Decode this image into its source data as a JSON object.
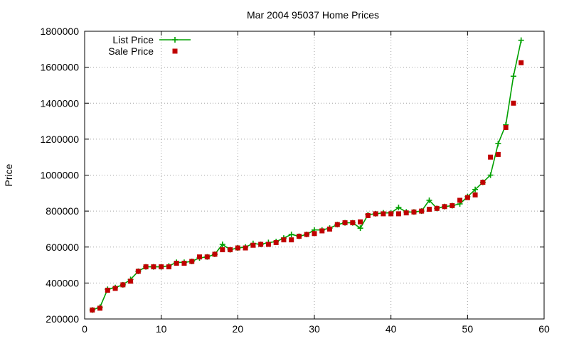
{
  "chart_data": {
    "type": "line",
    "title": "Mar 2004 95037 Home Prices",
    "xlabel": "",
    "ylabel": "Price",
    "xlim": [
      0,
      60
    ],
    "ylim": [
      200000,
      1800000
    ],
    "x_ticks": [
      0,
      10,
      20,
      30,
      40,
      50,
      60
    ],
    "y_ticks": [
      200000,
      400000,
      600000,
      800000,
      1000000,
      1200000,
      1400000,
      1600000,
      1800000
    ],
    "grid": true,
    "legend_position": "top-left",
    "x": [
      1,
      2,
      3,
      4,
      5,
      6,
      7,
      8,
      9,
      10,
      11,
      12,
      13,
      14,
      15,
      16,
      17,
      18,
      19,
      20,
      21,
      22,
      23,
      24,
      25,
      26,
      27,
      28,
      29,
      30,
      31,
      32,
      33,
      34,
      35,
      36,
      37,
      38,
      39,
      40,
      41,
      42,
      43,
      44,
      45,
      46,
      47,
      48,
      49,
      50,
      51,
      52,
      53,
      54,
      55,
      56,
      57
    ],
    "series": [
      {
        "name": "List Price",
        "style": "linespoints",
        "color": "#00a000",
        "values": [
          250000,
          265000,
          365000,
          375000,
          390000,
          420000,
          465000,
          490000,
          490000,
          490000,
          495000,
          515000,
          515000,
          520000,
          540000,
          545000,
          560000,
          615000,
          585000,
          595000,
          600000,
          620000,
          615000,
          625000,
          630000,
          650000,
          670000,
          660000,
          670000,
          695000,
          695000,
          705000,
          725000,
          735000,
          735000,
          705000,
          780000,
          785000,
          790000,
          790000,
          820000,
          795000,
          795000,
          800000,
          860000,
          815000,
          825000,
          830000,
          840000,
          880000,
          920000,
          960000,
          1000000,
          1175000,
          1280000,
          1550000,
          1750000
        ]
      },
      {
        "name": "Sale Price",
        "style": "points",
        "color": "#c00000",
        "values": [
          250000,
          260000,
          360000,
          370000,
          390000,
          410000,
          465000,
          490000,
          490000,
          490000,
          490000,
          510000,
          510000,
          520000,
          545000,
          545000,
          560000,
          585000,
          585000,
          595000,
          595000,
          610000,
          615000,
          615000,
          625000,
          640000,
          640000,
          660000,
          670000,
          675000,
          690000,
          700000,
          725000,
          735000,
          735000,
          740000,
          775000,
          785000,
          785000,
          785000,
          785000,
          790000,
          795000,
          800000,
          810000,
          815000,
          825000,
          830000,
          860000,
          875000,
          890000,
          960000,
          1100000,
          1115000,
          1265000,
          1400000,
          1625000
        ]
      }
    ]
  }
}
